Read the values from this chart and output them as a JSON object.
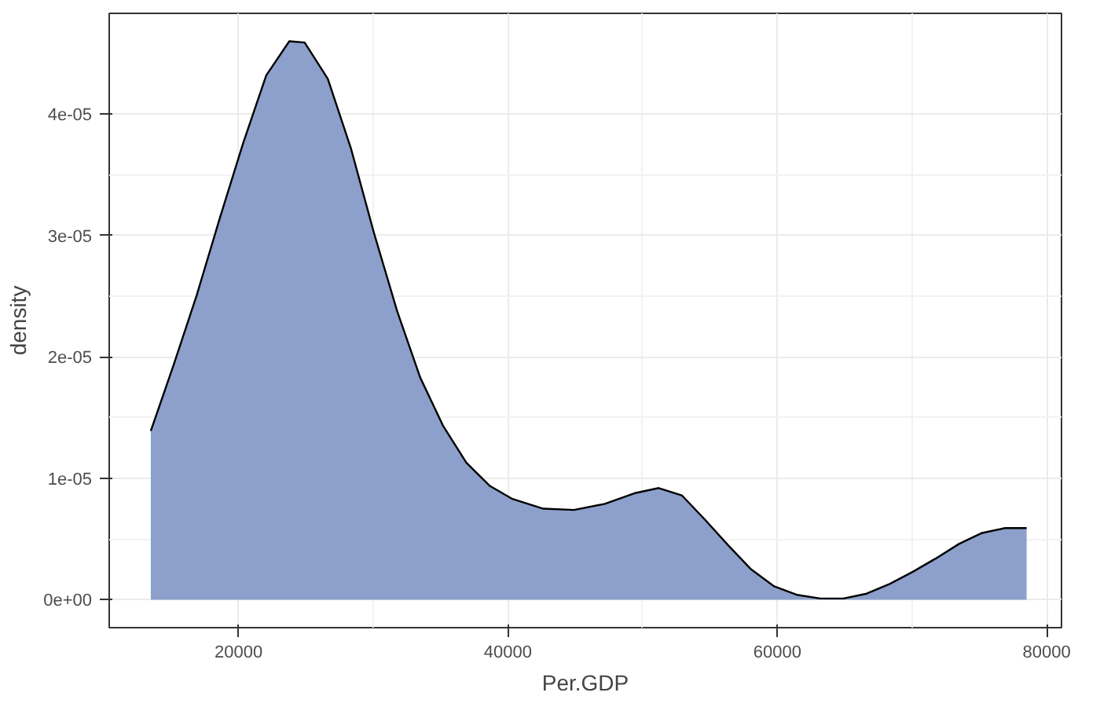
{
  "chart_data": {
    "type": "area",
    "xlabel": "Per.GDP",
    "ylabel": "density",
    "color": "#8da0cb",
    "grid": true,
    "x": [
      13486,
      15200,
      16900,
      18630,
      20340,
      22060,
      23770,
      24910,
      26630,
      28340,
      30060,
      31770,
      33490,
      35200,
      36910,
      38630,
      40340,
      42630,
      44910,
      47200,
      49490,
      51200,
      52910,
      54630,
      56340,
      58060,
      59770,
      61490,
      63200,
      64910,
      66630,
      68340,
      70060,
      71770,
      73490,
      75200,
      76910,
      78510
    ],
    "values": [
      1.39e-05,
      1.94e-05,
      2.51e-05,
      3.15e-05,
      3.76e-05,
      4.32e-05,
      4.6e-05,
      4.59e-05,
      4.29e-05,
      3.72e-05,
      3.02e-05,
      2.38e-05,
      1.83e-05,
      1.43e-05,
      1.13e-05,
      9.4e-06,
      8.3e-06,
      7.5e-06,
      7.4e-06,
      7.9e-06,
      8.8e-06,
      9.2e-06,
      8.6e-06,
      6.6e-06,
      4.5e-06,
      2.5e-06,
      1.1e-06,
      4e-07,
      1e-07,
      1e-07,
      5e-07,
      1.3e-06,
      2.3e-06,
      3.4e-06,
      4.6e-06,
      5.5e-06,
      5.9e-06,
      5.9e-06
    ],
    "xlim": [
      10400,
      81100
    ],
    "ylim": [
      -2.3e-06,
      4.83e-05
    ],
    "xticks": [
      20000,
      40000,
      60000,
      80000
    ],
    "yticks": [
      {
        "value": 0,
        "label": "0e+00"
      },
      {
        "value": 1e-05,
        "label": "1e-05"
      },
      {
        "value": 2e-05,
        "label": "2e-05"
      },
      {
        "value": 3e-05,
        "label": "3e-05"
      },
      {
        "value": 4e-05,
        "label": "4e-05"
      }
    ]
  }
}
